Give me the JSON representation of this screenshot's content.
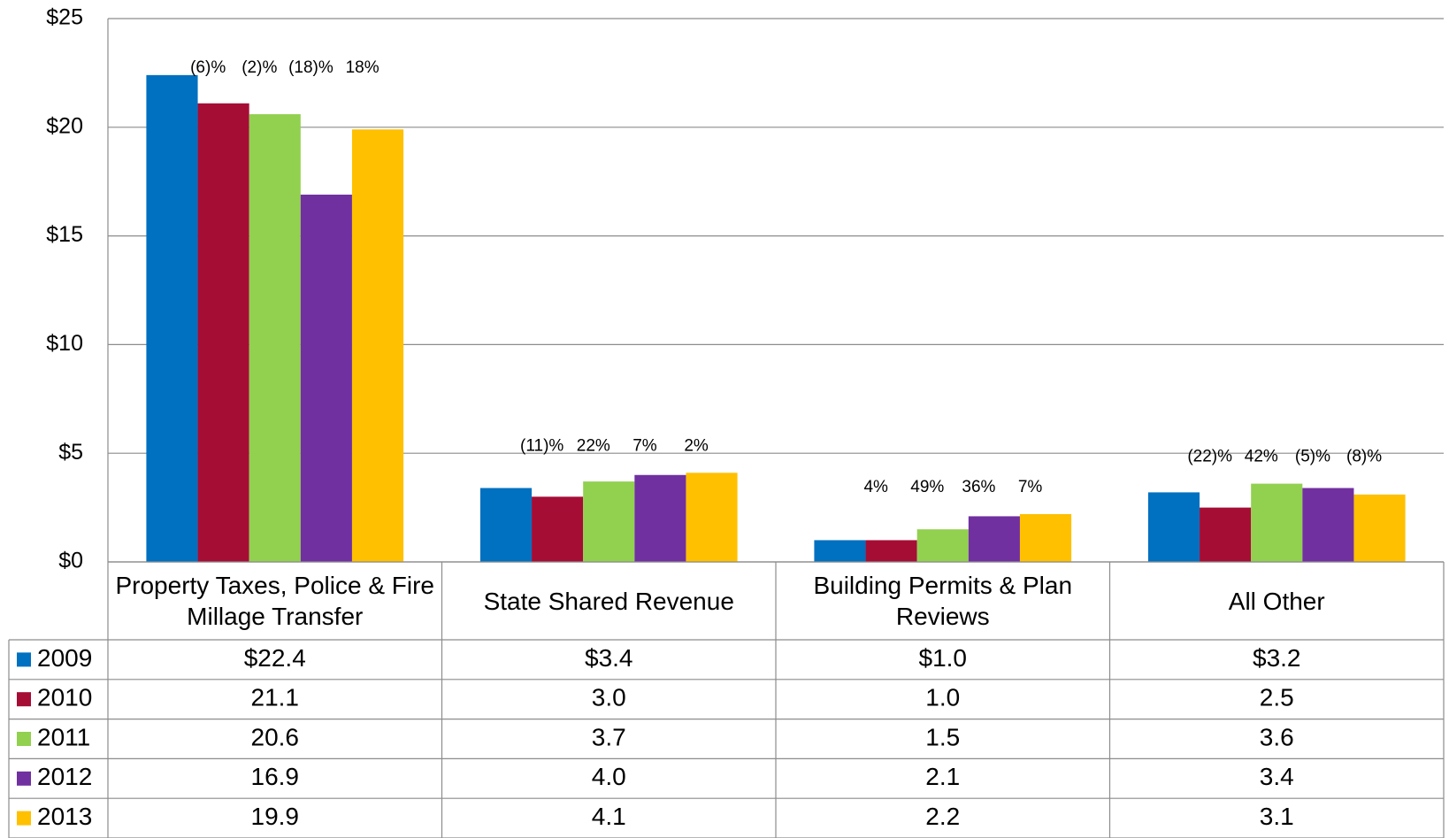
{
  "chart_data": {
    "type": "bar",
    "categories": [
      "Property Taxes, Police & Fire Millage Transfer",
      "State Shared Revenue",
      "Building Permits & Plan Reviews",
      "All Other"
    ],
    "series": [
      {
        "name": "2009",
        "color": "#0070c0",
        "values": [
          22.4,
          3.4,
          1.0,
          3.2
        ],
        "value_labels": [
          "$22.4",
          "$3.4",
          "$1.0",
          "$3.2"
        ]
      },
      {
        "name": "2010",
        "color": "#a50d35",
        "values": [
          21.1,
          3.0,
          1.0,
          2.5
        ],
        "value_labels": [
          "21.1",
          "3.0",
          "1.0",
          "2.5"
        ],
        "change_labels": [
          "(6)%",
          "(11)%",
          "4%",
          "(22)%"
        ]
      },
      {
        "name": "2011",
        "color": "#92d050",
        "values": [
          20.6,
          3.7,
          1.5,
          3.6
        ],
        "value_labels": [
          "20.6",
          "3.7",
          "1.5",
          "3.6"
        ],
        "change_labels": [
          "(2)%",
          "22%",
          "49%",
          "42%"
        ]
      },
      {
        "name": "2012",
        "color": "#7030a0",
        "values": [
          16.9,
          4.0,
          2.1,
          3.4
        ],
        "value_labels": [
          "16.9",
          "4.0",
          "2.1",
          "3.4"
        ],
        "change_labels": [
          "(18)%",
          "7%",
          "36%",
          "(5)%"
        ]
      },
      {
        "name": "2013",
        "color": "#ffc000",
        "values": [
          19.9,
          4.1,
          2.2,
          3.1
        ],
        "value_labels": [
          "19.9",
          "4.1",
          "2.2",
          "3.1"
        ],
        "change_labels": [
          "18%",
          "2%",
          "7%",
          "(8)%"
        ]
      }
    ],
    "ylim": [
      0,
      25
    ],
    "yticks": [
      {
        "value": 0,
        "label": "$0"
      },
      {
        "value": 5,
        "label": "$5"
      },
      {
        "value": 10,
        "label": "$10"
      },
      {
        "value": 15,
        "label": "$15"
      },
      {
        "value": 20,
        "label": "$20"
      },
      {
        "value": 25,
        "label": "$25"
      }
    ],
    "grid": true,
    "legend": "table"
  }
}
